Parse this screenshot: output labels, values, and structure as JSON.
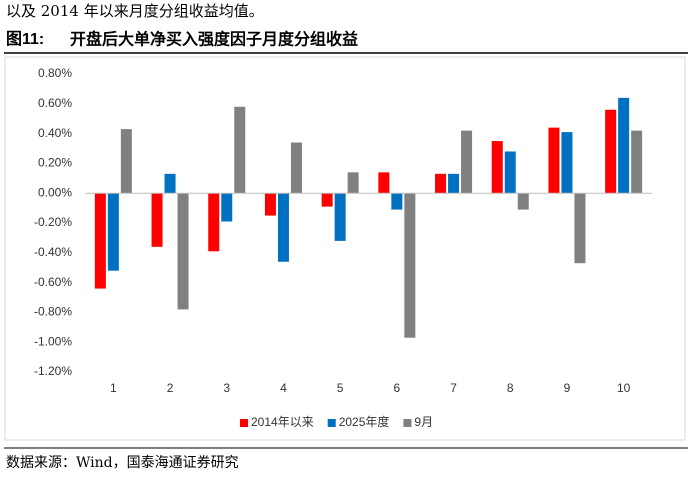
{
  "intro_text": "以及 2014 年以来月度分组收益均值。",
  "figure_label": "图11:",
  "source": "数据来源：Wind，国泰海通证券研究",
  "chart_data": {
    "type": "bar",
    "title": "开盘后大单净买入强度因子月度分组收益",
    "categories": [
      "1",
      "2",
      "3",
      "4",
      "5",
      "6",
      "7",
      "8",
      "9",
      "10"
    ],
    "series": [
      {
        "name": "2014年以来",
        "color": "#ff0000",
        "values": [
          -0.64,
          -0.36,
          -0.39,
          -0.15,
          -0.09,
          0.14,
          0.13,
          0.35,
          0.44,
          0.56
        ]
      },
      {
        "name": "2025年度",
        "color": "#0070c0",
        "values": [
          -0.52,
          0.13,
          -0.19,
          -0.46,
          -0.32,
          -0.11,
          0.13,
          0.28,
          0.41,
          0.64
        ]
      },
      {
        "name": "9月",
        "color": "#808080",
        "values": [
          0.43,
          -0.78,
          0.58,
          0.34,
          0.14,
          -0.97,
          0.42,
          -0.11,
          -0.47,
          0.42
        ]
      }
    ],
    "ylim": [
      -1.2,
      0.8
    ],
    "yticks": [
      {
        "value": -1.2,
        "label": "-1.20%"
      },
      {
        "value": -1.0,
        "label": "-1.00%"
      },
      {
        "value": -0.8,
        "label": "-0.80%"
      },
      {
        "value": -0.6,
        "label": "-0.60%"
      },
      {
        "value": -0.4,
        "label": "-0.40%"
      },
      {
        "value": -0.2,
        "label": "-0.20%"
      },
      {
        "value": 0,
        "label": "0.00%"
      },
      {
        "value": 0.2,
        "label": "0.20%"
      },
      {
        "value": 0.4,
        "label": "0.40%"
      },
      {
        "value": 0.6,
        "label": "0.60%"
      },
      {
        "value": 0.8,
        "label": "0.80%"
      }
    ],
    "grid": false,
    "legend": "bottom"
  }
}
